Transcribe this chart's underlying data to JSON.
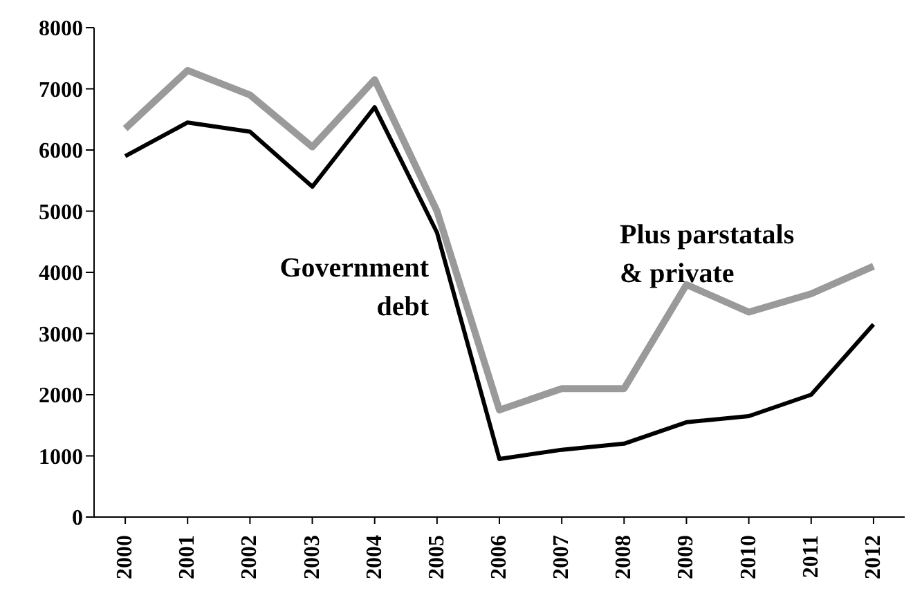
{
  "chart_data": {
    "type": "line",
    "categories": [
      "2000",
      "2001",
      "2002",
      "2003",
      "2004",
      "2005",
      "2006",
      "2007",
      "2008",
      "2009",
      "2010",
      "2011",
      "2012"
    ],
    "series": [
      {
        "name": "Government debt",
        "color": "#000000",
        "values": [
          5900,
          6450,
          6300,
          5400,
          6700,
          4650,
          950,
          1100,
          1200,
          1550,
          1650,
          2000,
          3150
        ]
      },
      {
        "name": "Plus parstatals & private",
        "color": "#9a9a9a",
        "values": [
          6350,
          7300,
          6900,
          6050,
          7150,
          5000,
          1750,
          2100,
          2100,
          3800,
          3350,
          3650,
          4100
        ]
      }
    ],
    "ylim": [
      0,
      8000
    ],
    "yticks": [
      0,
      1000,
      2000,
      3000,
      4000,
      5000,
      6000,
      7000,
      8000
    ],
    "grid": false,
    "legend": false,
    "marker": "none",
    "line_style": "solid"
  }
}
